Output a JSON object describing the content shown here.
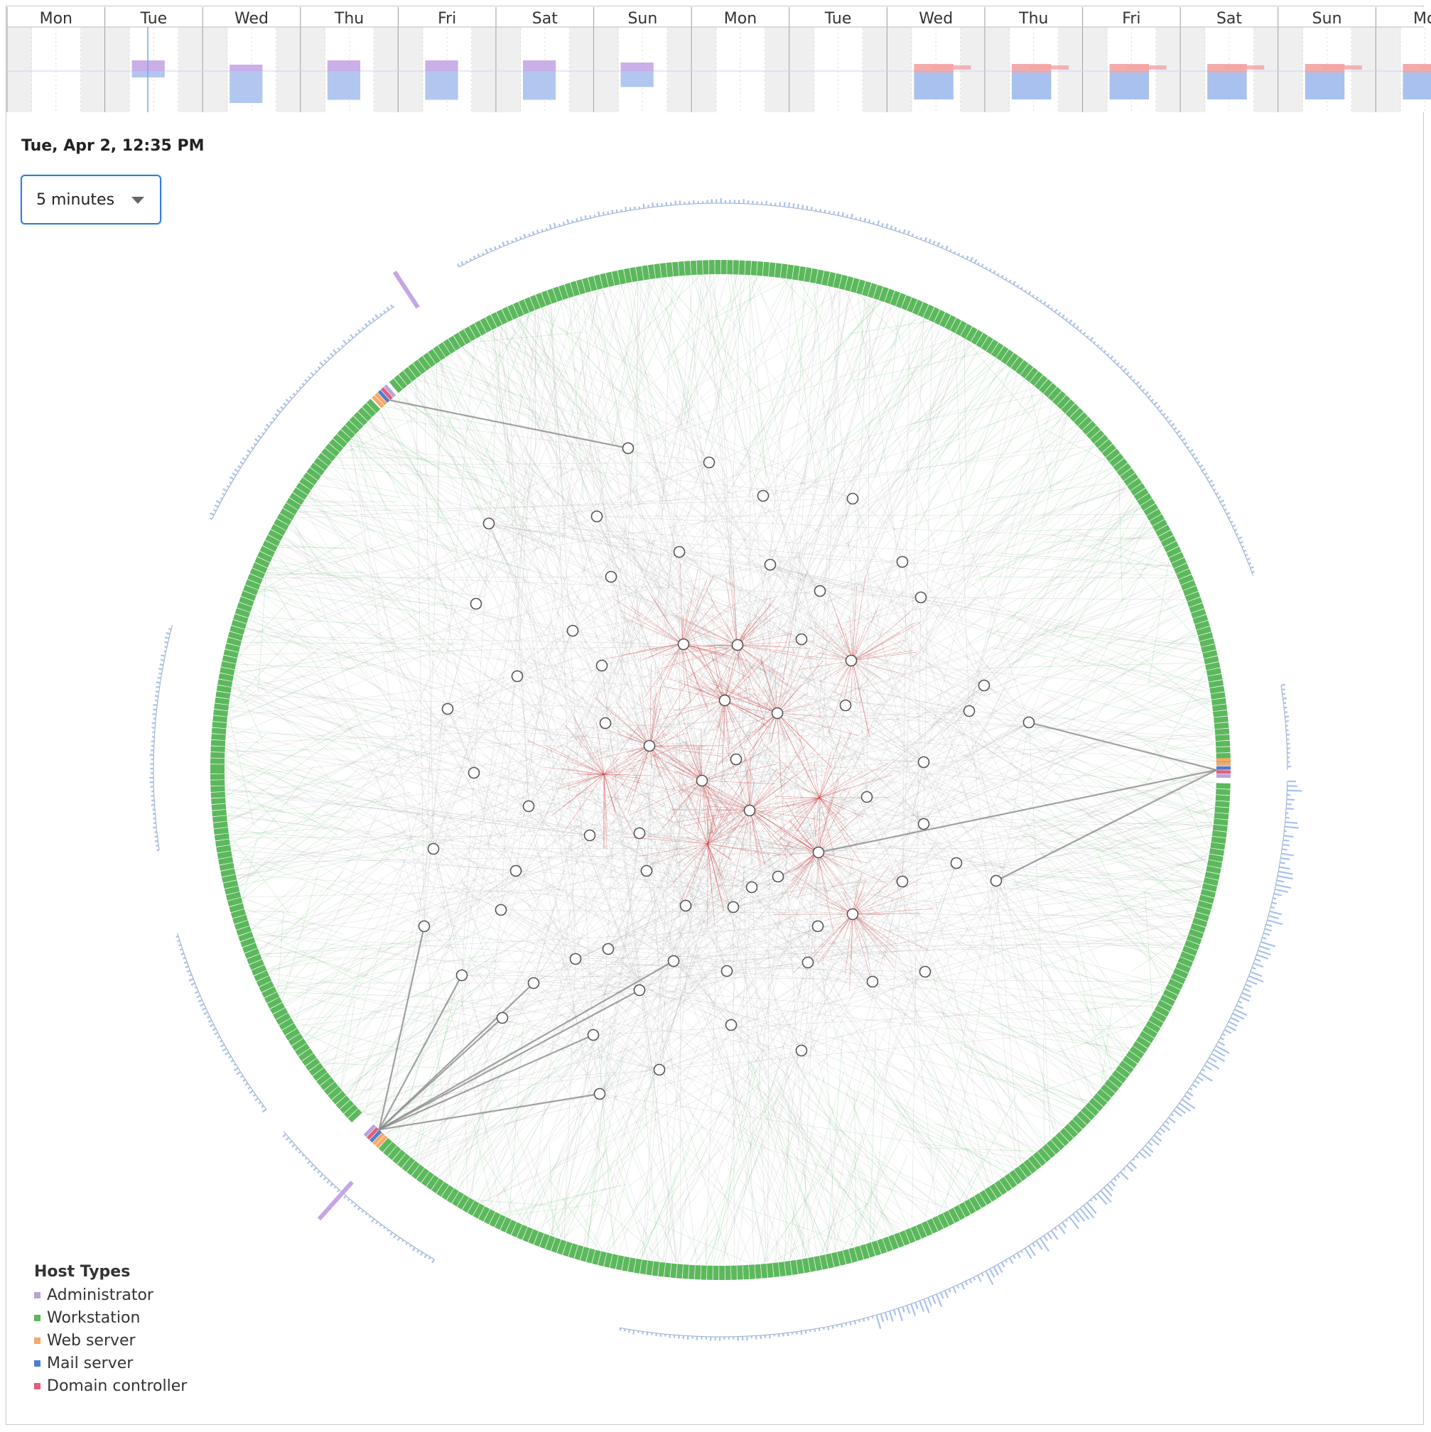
{
  "timeline": {
    "days": [
      "Mon",
      "Tue",
      "Wed",
      "Thu",
      "Fri",
      "Sat",
      "Sun",
      "Mon",
      "Tue",
      "Wed",
      "Thu",
      "Fri",
      "Sat",
      "Sun",
      "Mo"
    ]
  },
  "current_time": "Tue, Apr 2, 12:35 PM",
  "interval": {
    "selected": "5 minutes"
  },
  "legend": {
    "title": "Host Types",
    "items": [
      {
        "label": "Administrator",
        "color": "#b9a3d9"
      },
      {
        "label": "Workstation",
        "color": "#5cb85c"
      },
      {
        "label": "Web server",
        "color": "#f5a96a"
      },
      {
        "label": "Mail server",
        "color": "#4a7fd1"
      },
      {
        "label": "Domain controller",
        "color": "#e0607a"
      }
    ]
  },
  "colors": {
    "workstation_ring": "#5cb85c",
    "inbound_histogram": "#a8c1ee",
    "outbound_histogram": "#c4a6e6",
    "alert_histogram": "#f2a3a3",
    "edge_normal": "#9a9a9a",
    "edge_alert": "#cc3333",
    "edge_workstation": "#7fd18a"
  }
}
